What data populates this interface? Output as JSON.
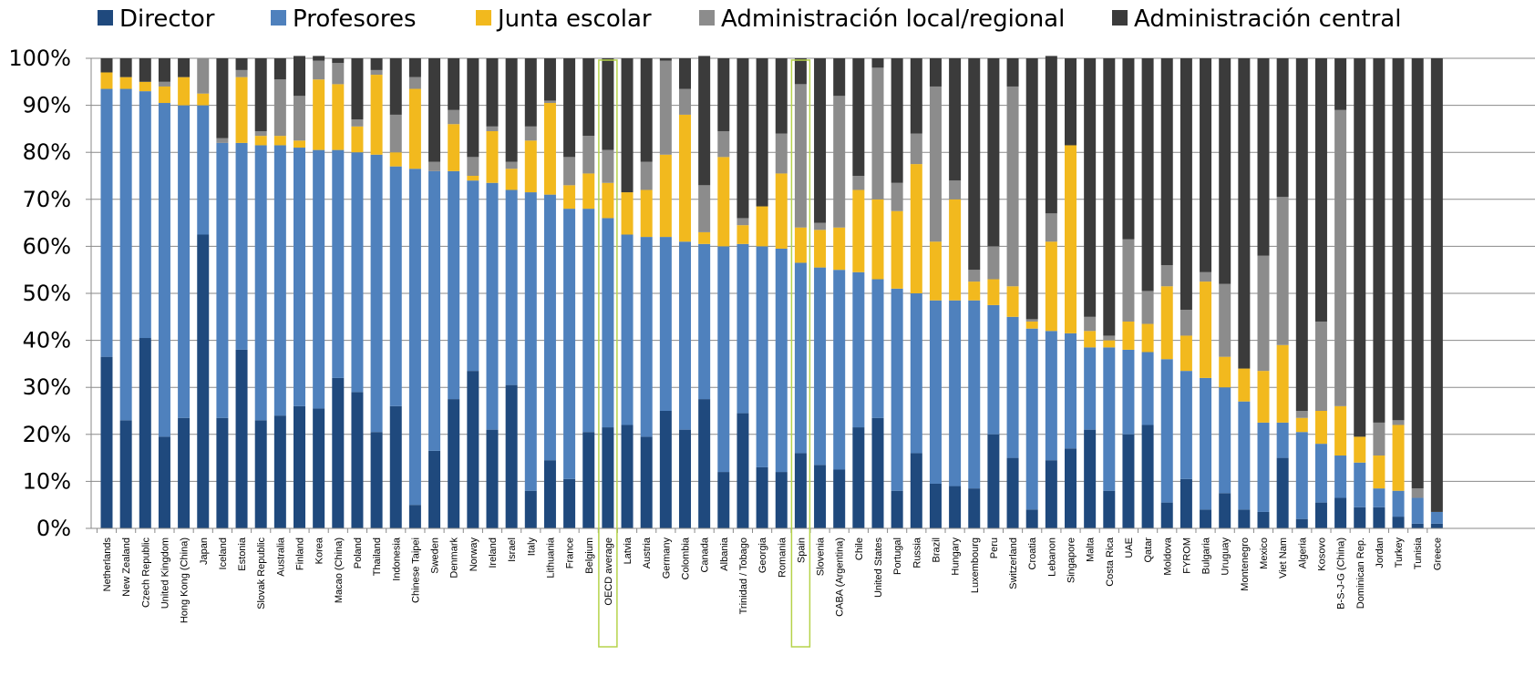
{
  "chart_data": {
    "type": "bar",
    "stacked": true,
    "categories": [
      "Netherlands",
      "New Zealand",
      "Czech Republic",
      "United Kingdom",
      "Hong Kong (China)",
      "Japan",
      "Iceland",
      "Estonia",
      "Slovak Republic",
      "Australia",
      "Finland",
      "Korea",
      "Macao (China)",
      "Poland",
      "Thailand",
      "Indonesia",
      "Chinese Taipei",
      "Sweden",
      "Denmark",
      "Norway",
      "Ireland",
      "Israel",
      "Italy",
      "Lithuania",
      "France",
      "Belgium",
      "OECD average",
      "Latvia",
      "Austria",
      "Germany",
      "Colombia",
      "Canada",
      "Albania",
      "Trinidad / Tobago",
      "Georgia",
      "Romania",
      "Spain",
      "Slovenia",
      "CABA (Argentina)",
      "Chile",
      "United States",
      "Portugal",
      "Russia",
      "Brazil",
      "Hungary",
      "Luxembourg",
      "Peru",
      "Switzerland",
      "Croatia",
      "Lebanon",
      "Singapore",
      "Malta",
      "Costa Rica",
      "UAE",
      "Qatar",
      "Moldova",
      "FYROM",
      "Bulgaria",
      "Uruguay",
      "Montenegro",
      "Mexico",
      "Viet Nam",
      "Algeria",
      "Kosovo",
      "B-S-J-G (China)",
      "Dominican Rep.",
      "Jordan",
      "Turkey",
      "Tunisia",
      "Greece"
    ],
    "highlighted": [
      "OECD average",
      "Spain"
    ],
    "series": [
      {
        "name": "Director",
        "color": "#1f497d",
        "values": [
          36.5,
          23,
          40.5,
          19.5,
          23.5,
          62.5,
          23.5,
          38,
          23,
          24,
          26,
          25.5,
          32,
          29,
          20.5,
          26,
          5,
          16.5,
          27.5,
          33.5,
          21,
          30.5,
          8,
          14.5,
          10.5,
          20.5,
          21.5,
          22,
          19.5,
          25,
          21,
          27.5,
          12,
          24.5,
          13,
          12,
          16,
          13.5,
          12.5,
          21.5,
          23.5,
          8,
          16,
          9.5,
          9,
          8.5,
          20,
          15,
          4,
          14.5,
          17,
          21,
          8,
          20,
          22,
          5.5,
          10.5,
          4,
          7.5,
          4,
          3.5,
          15,
          2,
          5.5,
          6.5,
          4.5,
          4.5,
          2.5,
          1,
          1
        ]
      },
      {
        "name": "Profesores",
        "color": "#4f81bd",
        "values": [
          57,
          70.5,
          52.5,
          71,
          66.5,
          27.5,
          58.5,
          44,
          58.5,
          57.5,
          55,
          55,
          48.5,
          51,
          59,
          51,
          71.5,
          59.5,
          48.5,
          40.5,
          52.5,
          41.5,
          63.5,
          56.5,
          57.5,
          47.5,
          44.5,
          40.5,
          42.5,
          37,
          40,
          33,
          48,
          36,
          47,
          47.5,
          40.5,
          42,
          42.5,
          33,
          29.5,
          43,
          34,
          39,
          39.5,
          40,
          27.5,
          30,
          38.5,
          27.5,
          24.5,
          17.5,
          30.5,
          18,
          15.5,
          30.5,
          23,
          28,
          22.5,
          23,
          19,
          7.5,
          18.5,
          12.5,
          9,
          9.5,
          4,
          5.5,
          5.5,
          2.5
        ]
      },
      {
        "name": "Junta escolar",
        "color": "#f2b91e",
        "values": [
          3.5,
          2.5,
          2,
          3.5,
          6,
          2.5,
          0,
          14,
          2,
          2,
          1.5,
          15,
          14,
          5.5,
          17,
          3,
          17,
          0,
          10,
          1,
          11,
          4.5,
          11,
          19.5,
          5,
          7.5,
          7.5,
          9,
          10,
          17.5,
          27,
          2.5,
          19,
          4,
          8.5,
          16,
          7.5,
          8,
          9,
          17.5,
          17,
          16.5,
          27.5,
          12.5,
          21.5,
          4,
          5.5,
          6.5,
          1.5,
          19,
          40,
          3.5,
          1.5,
          6,
          6,
          15.5,
          7.5,
          20.5,
          6.5,
          7,
          11,
          16.5,
          3,
          7,
          10.5,
          5.5,
          7,
          14,
          0,
          0
        ]
      },
      {
        "name": "Administración local/regional",
        "color": "#8c8c8c",
        "values": [
          0,
          0,
          0,
          1,
          0,
          7.5,
          1,
          1.5,
          1,
          12,
          9.5,
          4,
          4.5,
          1.5,
          1,
          8,
          2.5,
          2,
          3,
          4,
          1,
          1.5,
          3,
          0.5,
          6,
          8,
          7,
          0,
          6,
          20,
          5.5,
          10,
          5.5,
          1.5,
          0,
          8.5,
          30.5,
          1.5,
          28,
          3,
          28,
          6,
          6.5,
          33,
          4,
          2.5,
          7,
          42.5,
          0.5,
          6,
          0,
          3,
          1,
          17.5,
          7,
          4.5,
          5.5,
          2,
          15.5,
          0,
          24.5,
          31.5,
          1.5,
          19,
          63,
          0,
          7,
          1,
          2,
          0
        ]
      },
      {
        "name": "Administración central",
        "color": "#3b3b3b",
        "values": [
          3,
          4,
          5,
          5,
          4,
          0,
          17,
          2.5,
          15.5,
          4.5,
          8.5,
          1,
          1,
          13,
          2.5,
          12,
          4,
          22,
          11,
          21,
          14.5,
          22,
          14.5,
          9,
          21,
          16.5,
          19.5,
          28.5,
          22,
          0.5,
          6.5,
          27.5,
          15.5,
          34,
          31.5,
          16,
          5.5,
          35,
          8,
          25,
          2,
          26.5,
          16,
          6,
          26,
          45,
          40,
          6,
          55.5,
          33.5,
          18.5,
          55,
          59,
          38.5,
          49.5,
          44,
          53.5,
          45.5,
          48,
          66,
          42,
          29.5,
          75,
          56,
          11,
          80.5,
          77.5,
          77,
          91.5,
          96.5
        ]
      }
    ],
    "yticks": [
      "0%",
      "10%",
      "20%",
      "30%",
      "40%",
      "50%",
      "60%",
      "70%",
      "80%",
      "90%",
      "100%"
    ],
    "ylim": [
      0,
      100
    ],
    "legend_position": "top",
    "grid": true
  }
}
